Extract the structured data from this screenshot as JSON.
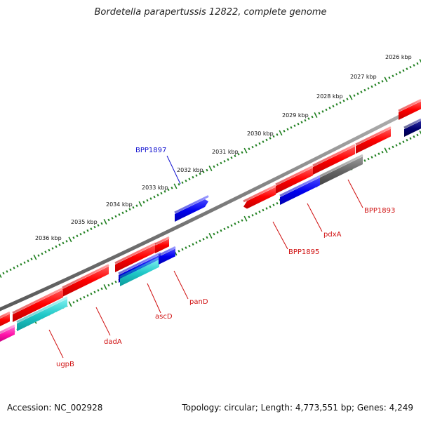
{
  "title": "Bordetella parapertussis 12822, complete genome",
  "footer": {
    "accession": "Accession: NC_002928",
    "summary": "Topology: circular; Length: 4,773,551 bp; Genes: 4,249"
  },
  "colors": {
    "backbone": "#8c8c8c",
    "ticks": "#1f7f1f",
    "label_red": "#d01010",
    "label_blue": "#1010d0"
  },
  "ticks": [
    "2026 kbp",
    "2027 kbp",
    "2028 kbp",
    "2029 kbp",
    "2030 kbp",
    "2031 kbp",
    "2032 kbp",
    "2033 kbp",
    "2034 kbp",
    "2035 kbp",
    "2036 kbp"
  ],
  "genes": [
    {
      "name": "BPP1897",
      "color": "#1010d0"
    },
    {
      "name": "BPP1893",
      "color": "#d01010"
    },
    {
      "name": "pdxA",
      "color": "#d01010"
    },
    {
      "name": "BPP1895",
      "color": "#d01010"
    },
    {
      "name": "panD",
      "color": "#d01010"
    },
    {
      "name": "ascD",
      "color": "#d01010"
    },
    {
      "name": "dadA",
      "color": "#d01010"
    },
    {
      "name": "ugpB",
      "color": "#d01010"
    }
  ]
}
